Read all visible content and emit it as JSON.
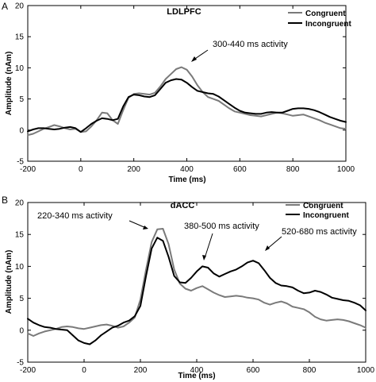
{
  "chart_data": [
    {
      "panel_label": "A",
      "type": "line",
      "title": "LDLPFC",
      "xlabel": "Time (ms)",
      "ylabel": "Amplitude (nAm)",
      "xlim": [
        -200,
        1000
      ],
      "ylim": [
        -5,
        20
      ],
      "xticks": [
        -200,
        0,
        200,
        400,
        600,
        800,
        1000
      ],
      "yticks": [
        -5,
        0,
        5,
        10,
        15,
        20
      ],
      "legend_position": "top-right",
      "series": [
        {
          "name": "Congruent",
          "color": "#7a7a7a",
          "x": [
            -200,
            -180,
            -160,
            -140,
            -120,
            -100,
            -80,
            -60,
            -40,
            -20,
            0,
            20,
            40,
            60,
            80,
            100,
            120,
            140,
            160,
            180,
            200,
            220,
            240,
            260,
            280,
            300,
            320,
            340,
            360,
            380,
            400,
            420,
            440,
            460,
            480,
            500,
            520,
            540,
            560,
            580,
            600,
            620,
            640,
            660,
            680,
            700,
            720,
            740,
            760,
            780,
            800,
            820,
            840,
            860,
            880,
            900,
            920,
            940,
            960,
            980,
            1000
          ],
          "y": [
            -0.8,
            -0.6,
            -0.2,
            0.2,
            0.5,
            0.8,
            0.6,
            0.3,
            0.1,
            0.2,
            -0.3,
            -0.2,
            0.6,
            1.6,
            2.8,
            2.7,
            1.6,
            1.0,
            3.2,
            5.2,
            5.8,
            5.9,
            5.8,
            5.7,
            6.0,
            7.0,
            8.2,
            9.0,
            9.8,
            10.1,
            9.7,
            8.6,
            7.2,
            6.1,
            5.3,
            5.0,
            4.7,
            4.1,
            3.5,
            3.0,
            2.8,
            2.6,
            2.4,
            2.3,
            2.2,
            2.4,
            2.6,
            2.8,
            2.7,
            2.5,
            2.3,
            2.4,
            2.5,
            2.2,
            1.9,
            1.6,
            1.2,
            0.9,
            0.6,
            0.3,
            0.2
          ]
        },
        {
          "name": "Incongruent",
          "color": "#000000",
          "x": [
            -200,
            -180,
            -160,
            -140,
            -120,
            -100,
            -80,
            -60,
            -40,
            -20,
            0,
            20,
            40,
            60,
            80,
            100,
            120,
            140,
            160,
            180,
            200,
            220,
            240,
            260,
            280,
            300,
            320,
            340,
            360,
            380,
            400,
            420,
            440,
            460,
            480,
            500,
            520,
            540,
            560,
            580,
            600,
            620,
            640,
            660,
            680,
            700,
            720,
            740,
            760,
            780,
            800,
            820,
            840,
            860,
            880,
            900,
            920,
            940,
            960,
            980,
            1000
          ],
          "y": [
            -0.2,
            0.1,
            0.3,
            0.3,
            0.2,
            0.1,
            0.2,
            0.4,
            0.5,
            0.3,
            -0.3,
            0.3,
            1.0,
            1.5,
            1.9,
            1.8,
            1.6,
            1.8,
            3.8,
            5.3,
            5.7,
            5.6,
            5.4,
            5.3,
            5.6,
            6.6,
            7.6,
            8.0,
            8.2,
            8.1,
            7.6,
            6.9,
            6.3,
            6.1,
            5.9,
            5.8,
            5.4,
            4.8,
            4.2,
            3.6,
            3.1,
            2.8,
            2.7,
            2.6,
            2.6,
            2.8,
            2.9,
            2.8,
            2.8,
            3.1,
            3.4,
            3.5,
            3.5,
            3.4,
            3.2,
            2.9,
            2.5,
            2.1,
            1.8,
            1.5,
            1.3
          ]
        }
      ],
      "annotations": [
        {
          "text": "300-440 ms activity",
          "x": 370,
          "y": 11.0
        }
      ]
    },
    {
      "panel_label": "B",
      "type": "line",
      "title": "dACC",
      "xlabel": "Time (ms)",
      "ylabel": "Amplitude (nAm)",
      "xlim": [
        -200,
        1000
      ],
      "ylim": [
        -5,
        20
      ],
      "xticks": [
        -200,
        0,
        200,
        400,
        600,
        800,
        1000
      ],
      "yticks": [
        -5,
        0,
        5,
        10,
        15,
        20
      ],
      "legend_position": "top-right",
      "series": [
        {
          "name": "Congruent",
          "color": "#7a7a7a",
          "x": [
            -200,
            -180,
            -160,
            -140,
            -120,
            -100,
            -80,
            -60,
            -40,
            -20,
            0,
            20,
            40,
            60,
            80,
            100,
            120,
            140,
            160,
            180,
            200,
            220,
            240,
            260,
            280,
            300,
            320,
            340,
            360,
            380,
            400,
            420,
            440,
            460,
            480,
            500,
            520,
            540,
            560,
            580,
            600,
            620,
            640,
            660,
            680,
            700,
            720,
            740,
            760,
            780,
            800,
            820,
            840,
            860,
            880,
            900,
            920,
            940,
            960,
            980,
            1000
          ],
          "y": [
            -0.5,
            -0.9,
            -0.5,
            -0.2,
            0.0,
            0.2,
            0.5,
            0.6,
            0.5,
            0.3,
            0.2,
            0.4,
            0.6,
            0.8,
            0.9,
            0.7,
            0.4,
            0.6,
            1.2,
            2.0,
            4.8,
            9.5,
            13.8,
            15.8,
            15.9,
            13.5,
            9.5,
            7.3,
            6.5,
            6.2,
            6.6,
            6.9,
            6.4,
            5.9,
            5.5,
            5.2,
            5.3,
            5.4,
            5.3,
            5.1,
            5.0,
            4.8,
            4.3,
            4.0,
            4.3,
            4.5,
            4.2,
            3.7,
            3.5,
            3.3,
            2.8,
            2.1,
            1.7,
            1.5,
            1.6,
            1.7,
            1.6,
            1.4,
            1.1,
            0.8,
            0.4
          ]
        },
        {
          "name": "Incongruent",
          "color": "#000000",
          "x": [
            -200,
            -180,
            -160,
            -140,
            -120,
            -100,
            -80,
            -60,
            -40,
            -20,
            0,
            20,
            40,
            60,
            80,
            100,
            120,
            140,
            160,
            180,
            200,
            220,
            240,
            260,
            280,
            300,
            320,
            340,
            360,
            380,
            400,
            420,
            440,
            460,
            480,
            500,
            520,
            540,
            560,
            580,
            600,
            620,
            640,
            660,
            680,
            700,
            720,
            740,
            760,
            780,
            800,
            820,
            840,
            860,
            880,
            900,
            920,
            940,
            960,
            980,
            1000
          ],
          "y": [
            1.8,
            1.2,
            0.8,
            0.5,
            0.4,
            0.2,
            0.1,
            0.0,
            -0.8,
            -1.6,
            -2.0,
            -2.2,
            -1.6,
            -0.8,
            -0.2,
            0.4,
            0.7,
            1.2,
            1.5,
            2.2,
            3.8,
            8.5,
            12.8,
            14.5,
            14.0,
            11.5,
            8.5,
            7.5,
            7.4,
            8.2,
            9.2,
            10.0,
            9.8,
            8.9,
            8.4,
            8.8,
            9.2,
            9.5,
            10.0,
            10.6,
            10.9,
            10.5,
            9.4,
            8.2,
            7.4,
            7.0,
            6.9,
            6.7,
            6.2,
            5.8,
            5.9,
            6.2,
            6.0,
            5.6,
            5.1,
            4.9,
            4.7,
            4.6,
            4.3,
            3.9,
            3.1
          ]
        }
      ],
      "annotations": [
        {
          "text": "220-340 ms activity",
          "x": 280,
          "y": 16.2
        },
        {
          "text": "380-500 ms activity",
          "x": 445,
          "y": 10.4
        },
        {
          "text": "520-680 ms activity",
          "x": 620,
          "y": 11.4
        }
      ]
    }
  ]
}
